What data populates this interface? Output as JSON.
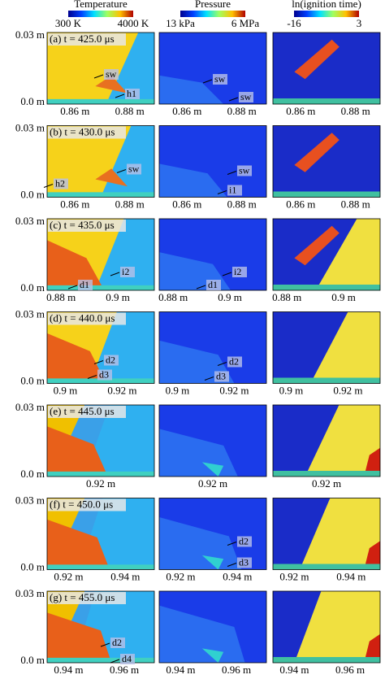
{
  "headers": [
    {
      "title": "Temperature",
      "min_label": "300 K",
      "max_label": "4000 K"
    },
    {
      "title": "Pressure",
      "min_label": "13 kPa",
      "max_label": "6 MPa"
    },
    {
      "title": "ln(ignition time)",
      "min_label": "-16",
      "max_label": "3"
    }
  ],
  "rows": [
    {
      "label": "(a) t = 425.0 μs",
      "y_labels": [
        "0.03 m",
        "0.0 m"
      ],
      "x_labels": [
        "0.86 m",
        "0.88 m"
      ],
      "annotations": [
        [
          "sw",
          "h1"
        ],
        [
          "sw",
          "sw"
        ],
        []
      ]
    },
    {
      "label": "(b) t = 430.0 μs",
      "y_labels": [
        "0.03 m",
        "0.0 m"
      ],
      "x_labels": [
        "0.86 m",
        "0.88 m"
      ],
      "annotations": [
        [
          "sw",
          "h2"
        ],
        [
          "sw",
          "i1"
        ],
        []
      ]
    },
    {
      "label": "(c) t = 435.0 μs",
      "y_labels": [
        "0.03 m",
        "0.0 m"
      ],
      "x_labels": [
        "0.88 m",
        "0.9 m"
      ],
      "annotations": [
        [
          "i2",
          "d1"
        ],
        [
          "d1",
          "i2"
        ],
        []
      ]
    },
    {
      "label": "(d) t = 440.0 μs",
      "y_labels": [
        "0.03 m",
        "0.0 m"
      ],
      "x_labels": [
        "0.9 m",
        "0.92 m"
      ],
      "annotations": [
        [
          "d2",
          "d3"
        ],
        [
          "d2",
          "d3"
        ],
        []
      ]
    },
    {
      "label": "(e) t = 445.0 μs",
      "y_labels": [
        "0.03 m",
        "0.0 m"
      ],
      "x_labels": [
        "0.92 m"
      ],
      "annotations": [
        [],
        [],
        []
      ]
    },
    {
      "label": "(f) t = 450.0 μs",
      "y_labels": [
        "0.03 m",
        "0.0 m"
      ],
      "x_labels": [
        "0.92 m",
        "0.94 m"
      ],
      "annotations": [
        [],
        [
          "d2",
          "d3"
        ],
        []
      ]
    },
    {
      "label": "(g) t = 455.0 μs",
      "y_labels": [
        "0.03 m",
        "0.0 m"
      ],
      "x_labels": [
        "0.94 m",
        "0.96 m"
      ],
      "annotations": [
        [
          "d2",
          "d4"
        ],
        [],
        []
      ]
    }
  ]
}
